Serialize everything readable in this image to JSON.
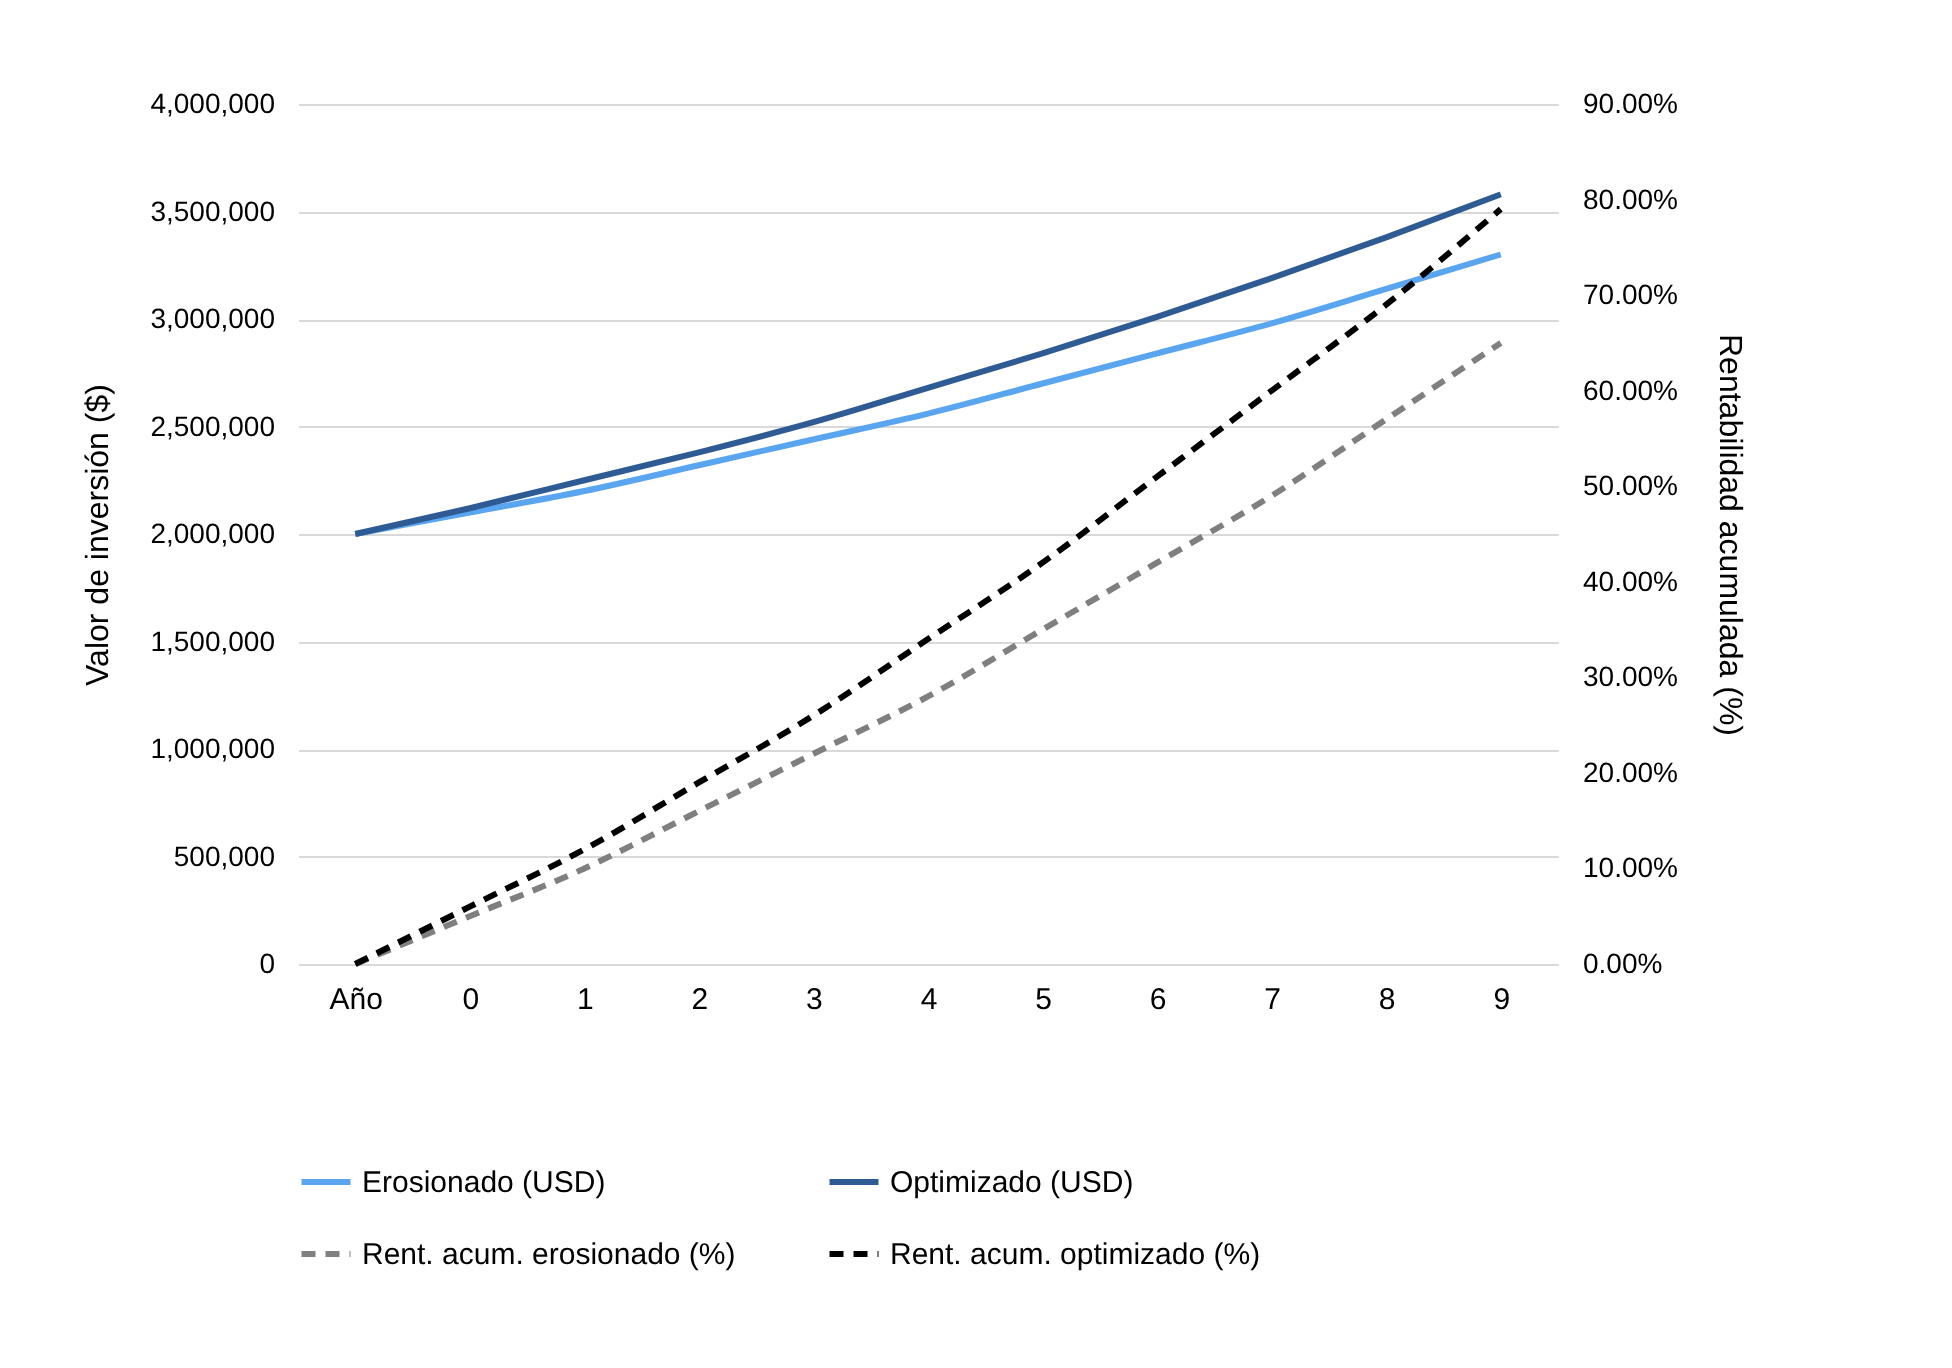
{
  "chart_data": {
    "type": "line",
    "ylabel": "Valor de inversión ($)",
    "y2label": "Rentabilidad acumulada (%)",
    "categories": [
      "Año",
      "0",
      "1",
      "2",
      "3",
      "4",
      "5",
      "6",
      "7",
      "8",
      "9"
    ],
    "series": [
      {
        "name": "Erosionado (USD)",
        "color": "#5aa5f0",
        "line_style": "solid",
        "values": [
          2000000,
          2100000,
          2200000,
          2320000,
          2440000,
          2560000,
          2700000,
          2840000,
          2980000,
          3140000,
          3300000
        ]
      },
      {
        "name": "Optimizado (USD)",
        "color": "#2f5b94",
        "line_style": "solid",
        "values": [
          2000000,
          2120000,
          2250000,
          2380000,
          2520000,
          2680000,
          2840000,
          3010000,
          3190000,
          3380000,
          3580000
        ]
      },
      {
        "name": "Rent. acum. erosionado (%)",
        "color": "#7f7f7f",
        "line_style": "dashed",
        "axis": "y2",
        "values": [
          0,
          5,
          10,
          16,
          22,
          28,
          35,
          42,
          49,
          57,
          65
        ]
      },
      {
        "name": "Rent. acum. optimizado (%)",
        "color": "#000000",
        "line_style": "dashed",
        "axis": "y2",
        "values": [
          0,
          6,
          12,
          19,
          26,
          34,
          42,
          51,
          60,
          69,
          79
        ]
      }
    ],
    "ylim": [
      0,
      4000000
    ],
    "yticks": [
      {
        "value": 0,
        "label": "0"
      },
      {
        "value": 500000,
        "label": "500,000"
      },
      {
        "value": 1000000,
        "label": "1,000,000"
      },
      {
        "value": 1500000,
        "label": "1,500,000"
      },
      {
        "value": 2000000,
        "label": "2,000,000"
      },
      {
        "value": 2500000,
        "label": "2,500,000"
      },
      {
        "value": 3000000,
        "label": "3,000,000"
      },
      {
        "value": 3500000,
        "label": "3,500,000"
      },
      {
        "value": 4000000,
        "label": "4,000,000"
      }
    ],
    "y2lim": [
      0,
      90
    ],
    "y2ticks": [
      {
        "value": 0,
        "label": "0.00%"
      },
      {
        "value": 10,
        "label": "10.00%"
      },
      {
        "value": 20,
        "label": "20.00%"
      },
      {
        "value": 30,
        "label": "30.00%"
      },
      {
        "value": 40,
        "label": "40.00%"
      },
      {
        "value": 50,
        "label": "50.00%"
      },
      {
        "value": 60,
        "label": "60.00%"
      },
      {
        "value": 70,
        "label": "70.00%"
      },
      {
        "value": 80,
        "label": "80.00%"
      },
      {
        "value": 90,
        "label": "90.00%"
      }
    ],
    "grid": "y",
    "legend": "bottom"
  }
}
